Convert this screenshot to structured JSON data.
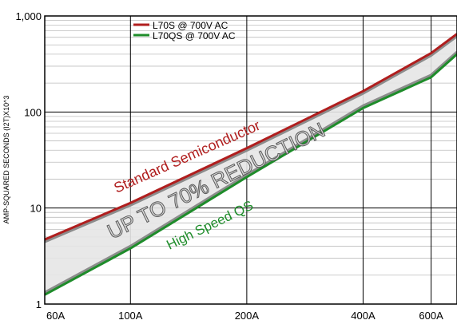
{
  "chart_data": {
    "type": "line",
    "xscale": "log",
    "yscale": "log",
    "xlim": [
      60,
      700
    ],
    "ylim": [
      1,
      1000
    ],
    "ylabel": "AMP-SQUARED SECONDS (I2T)X10^3",
    "xlabel": "",
    "x_ticks": [
      {
        "value": 60,
        "label": "60A"
      },
      {
        "value": 100,
        "label": "100A"
      },
      {
        "value": 200,
        "label": "200A"
      },
      {
        "value": 400,
        "label": "400A"
      },
      {
        "value": 600,
        "label": "600A"
      }
    ],
    "y_ticks": [
      {
        "value": 1,
        "label": "1"
      },
      {
        "value": 10,
        "label": "10"
      },
      {
        "value": 100,
        "label": "100"
      },
      {
        "value": 1000,
        "label": "1,000"
      }
    ],
    "grid": true,
    "legend_position": "top-left",
    "series": [
      {
        "name": "L70S @ 700V AC",
        "color": "#b01e1e",
        "x": [
          60,
          100,
          200,
          400,
          600,
          700
        ],
        "y": [
          4.7,
          11.3,
          42,
          165,
          410,
          650
        ]
      },
      {
        "name": "L70QS @ 700V AC",
        "color": "#1e8c2a",
        "x": [
          60,
          100,
          200,
          400,
          600,
          700
        ],
        "y": [
          1.25,
          3.8,
          21,
          110,
          230,
          400
        ]
      }
    ],
    "annotations": [
      {
        "text": "Standard Semiconductor",
        "color": "#b01e1e"
      },
      {
        "text": "UP TO 70% REDUCTION",
        "color": "#d9d9d9",
        "stroke": "#5a5a5a"
      },
      {
        "text": "High Speed QS",
        "color": "#1e8c2a"
      }
    ]
  }
}
